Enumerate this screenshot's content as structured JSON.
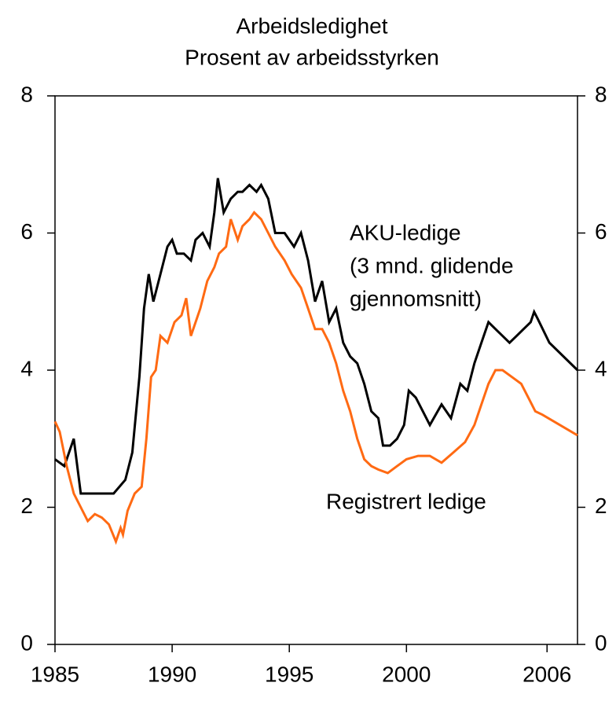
{
  "chart_data": {
    "type": "line",
    "title": [
      "Arbeidsledighet",
      "Prosent av arbeidsstyrken"
    ],
    "xlim": [
      1985,
      2007.3
    ],
    "xticks": [
      1985,
      1990,
      1995,
      2000,
      2006
    ],
    "ylim": [
      0,
      8
    ],
    "yticks": [
      0,
      2,
      4,
      6,
      8
    ],
    "y2lim": [
      0,
      8
    ],
    "y2ticks": [
      0,
      2,
      4,
      6,
      8
    ],
    "grid": false,
    "series": [
      {
        "name": [
          "AKU-ledige",
          "(3 mnd. glidende",
          "gjennomsnitt)"
        ],
        "color": "#000000",
        "dotted_from": 75,
        "x": [
          1985.0,
          1985.4,
          1985.8,
          1986.1,
          1986.5,
          1987.0,
          1987.5,
          1988.0,
          1988.3,
          1988.6,
          1988.8,
          1989.0,
          1989.2,
          1989.5,
          1989.8,
          1990.0,
          1990.2,
          1990.5,
          1990.8,
          1991.0,
          1991.3,
          1991.6,
          1991.8,
          1991.95,
          1992.2,
          1992.5,
          1992.8,
          1993.0,
          1993.3,
          1993.6,
          1993.8,
          1994.1,
          1994.4,
          1994.8,
          1995.2,
          1995.5,
          1995.8,
          1996.1,
          1996.4,
          1996.7,
          1997.0,
          1997.3,
          1997.6,
          1997.9,
          1998.2,
          1998.5,
          1998.8,
          1999.0,
          1999.3,
          1999.6,
          1999.9,
          2000.1,
          2000.4,
          2000.7,
          2001.0,
          2001.5,
          2001.9,
          2002.3,
          2002.6,
          2002.9,
          2003.2,
          2003.5,
          2003.8,
          2004.1,
          2004.4,
          2004.7,
          2005.0,
          2005.3,
          2005.45,
          2005.6,
          2006.1,
          2007.3
        ],
        "values": [
          2.7,
          2.6,
          3.0,
          2.2,
          2.2,
          2.2,
          2.2,
          2.4,
          2.8,
          3.9,
          4.9,
          5.4,
          5.0,
          5.4,
          5.8,
          5.9,
          5.7,
          5.7,
          5.6,
          5.9,
          6.0,
          5.8,
          6.3,
          6.8,
          6.3,
          6.5,
          6.6,
          6.6,
          6.7,
          6.6,
          6.7,
          6.5,
          6.0,
          6.0,
          5.8,
          6.0,
          5.6,
          5.0,
          5.3,
          4.7,
          4.9,
          4.4,
          4.2,
          4.1,
          3.8,
          3.4,
          3.3,
          2.9,
          2.9,
          3.0,
          3.2,
          3.7,
          3.6,
          3.4,
          3.2,
          3.5,
          3.3,
          3.8,
          3.7,
          4.1,
          4.4,
          4.7,
          4.6,
          4.5,
          4.4,
          4.5,
          4.6,
          4.7,
          4.85,
          4.75,
          4.4,
          4.0
        ]
      },
      {
        "name": [
          "Registrert ledige"
        ],
        "color": "#ff6a13",
        "dotted_from": 77,
        "x": [
          1985.0,
          1985.2,
          1985.5,
          1985.8,
          1986.1,
          1986.4,
          1986.7,
          1987.0,
          1987.3,
          1987.6,
          1987.8,
          1987.9,
          1988.1,
          1988.4,
          1988.7,
          1988.9,
          1989.1,
          1989.3,
          1989.5,
          1989.8,
          1990.1,
          1990.4,
          1990.6,
          1990.8,
          1991.2,
          1991.5,
          1991.8,
          1992.0,
          1992.3,
          1992.5,
          1992.8,
          1993.0,
          1993.3,
          1993.5,
          1993.8,
          1994.1,
          1994.4,
          1994.8,
          1995.1,
          1995.5,
          1995.8,
          1996.1,
          1996.4,
          1996.7,
          1997.0,
          1997.3,
          1997.6,
          1997.9,
          1998.2,
          1998.5,
          1998.8,
          1999.2,
          1999.6,
          2000.0,
          2000.5,
          2001.0,
          2001.5,
          2002.0,
          2002.5,
          2002.9,
          2003.2,
          2003.5,
          2003.8,
          2004.1,
          2004.5,
          2004.9,
          2005.2,
          2005.5,
          2005.8,
          2007.3
        ],
        "values": [
          3.25,
          3.1,
          2.6,
          2.2,
          2.0,
          1.8,
          1.9,
          1.85,
          1.75,
          1.5,
          1.7,
          1.6,
          1.95,
          2.2,
          2.3,
          3.0,
          3.9,
          4.0,
          4.5,
          4.4,
          4.7,
          4.8,
          5.05,
          4.5,
          4.9,
          5.3,
          5.5,
          5.7,
          5.8,
          6.2,
          5.9,
          6.1,
          6.2,
          6.3,
          6.2,
          6.0,
          5.8,
          5.6,
          5.4,
          5.2,
          4.9,
          4.6,
          4.6,
          4.4,
          4.1,
          3.7,
          3.4,
          3.0,
          2.7,
          2.6,
          2.55,
          2.5,
          2.6,
          2.7,
          2.75,
          2.75,
          2.65,
          2.8,
          2.95,
          3.2,
          3.5,
          3.8,
          4.0,
          4.0,
          3.9,
          3.8,
          3.6,
          3.4,
          3.35,
          3.05
        ]
      }
    ]
  }
}
